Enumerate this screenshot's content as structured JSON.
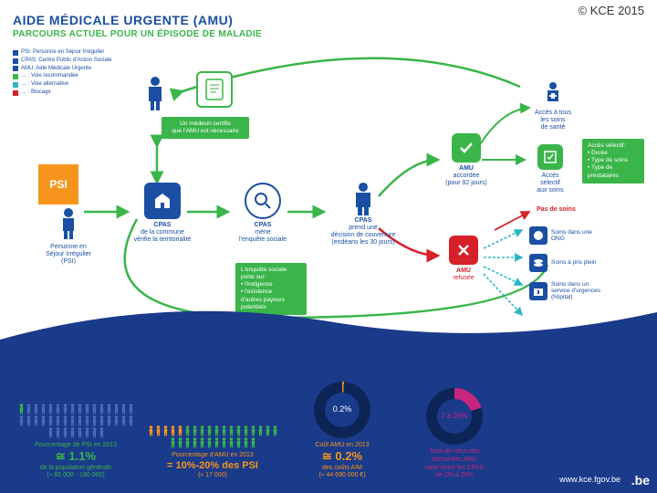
{
  "copyright": "© KCE 2015",
  "title_main_prefix": "AIDE MÉDICALE URGENTE ",
  "title_main_paren": "(AMU)",
  "title_sub": "PARCOURS ACTUEL POUR UN ÉPISODE DE MALADIE",
  "colors": {
    "blue": "#1a4fa3",
    "darkblue": "#1a3a8a",
    "green": "#3ab54a",
    "orange": "#f7941d",
    "red": "#d6202a",
    "cyan": "#2bb6c6",
    "magenta": "#c6267f"
  },
  "legend": [
    {
      "color": "#1a4fa3",
      "text": "PSI: Personne en Séjour Irrégulier"
    },
    {
      "color": "#1a4fa3",
      "text": "CPAS: Centre Public d'Action Sociale"
    },
    {
      "color": "#1a4fa3",
      "text": "AMU: Aide Médicale Urgente"
    },
    {
      "color": "#3ab54a",
      "text": "→ : Voie recommandée"
    },
    {
      "color": "#2bb6c6",
      "text": "→ : Voie alternative"
    },
    {
      "color": "#d6202a",
      "text": "→ : Blocage"
    }
  ],
  "psi_label": "PSI",
  "nodes": {
    "psi": {
      "line1": "Personne en",
      "line2": "Séjour Irrégulier",
      "line3": "(PSI)"
    },
    "cpas1": {
      "bold": "CPAS",
      "line1": "de la commune",
      "line2": "vérifie la territorialité"
    },
    "cpas2": {
      "bold": "CPAS",
      "line1": "mène",
      "line2": "l'enquête sociale"
    },
    "cpas3": {
      "bold": "CPAS",
      "line1": "prend une",
      "line2": "décision de couverture",
      "line3": "(endéans les 30 jours)"
    },
    "doc": {
      "line1": "Un médecin certifie",
      "line2": "que l'AMU est nécessaire"
    },
    "amu_ok": {
      "bold": "AMU",
      "line1": "accordée",
      "line2": "(pour 92 jours)"
    },
    "amu_no": {
      "bold": "AMU",
      "line1": "refusée"
    },
    "acces_all": {
      "line1": "Accès à tous",
      "line2": "les soins",
      "line3": "de santé"
    },
    "acces_sel": {
      "line1": "Accès",
      "line2": "sélectif",
      "line3": "aux soins"
    }
  },
  "green_cert": "Un médecin certifie que l'AMU est nécessaire",
  "green_enquete": {
    "l1": "L'enquête sociale",
    "l2": "porte sur:",
    "l3": "• l'indigence",
    "l4": "• l'existence",
    "l5": "  d'autres payeurs",
    "l6": "  potentiels"
  },
  "green_selectif": {
    "l1": "Accès sélectif:",
    "l2": "• Durée",
    "l3": "• Type de soins",
    "l4": "• Type de",
    "l5": "  prestataires"
  },
  "side": {
    "nosoin": "Pas de soins",
    "ong": "Soins dans une ONG",
    "prix": "Soins à prix plein",
    "urg": "Soins dans un service d'urgences (hôpital)"
  },
  "stats": {
    "s1": {
      "title": "Pourcentage de PSI en 2013",
      "big": "≅ 1.1%",
      "sub": "de la population générale",
      "sub2": "(≈ 85 000 - 160 000)",
      "color": "#3ab54a"
    },
    "s2": {
      "title": "Pourcentage d'AMU en 2013",
      "big": "= 10%-20% des PSI",
      "sub": "(≈ 17 000)",
      "color": "#f7941d"
    },
    "s3": {
      "title": "Coût AMU en 2013",
      "big": "≅ 0.2%",
      "sub": "des coûts AIM",
      "sub2": "(≈ 44 690 000 €)",
      "donut": "0.2%",
      "color": "#f7941d"
    },
    "s4": {
      "title": "Taux de refus des",
      "title2": "demandes AMU",
      "sub": "varie entre les CPAS",
      "sub2": "de 2% à 26%",
      "donut": "2 à 26%",
      "color": "#c6267f"
    }
  },
  "site": "www.kce.fgov.be",
  "belogo": ".be"
}
